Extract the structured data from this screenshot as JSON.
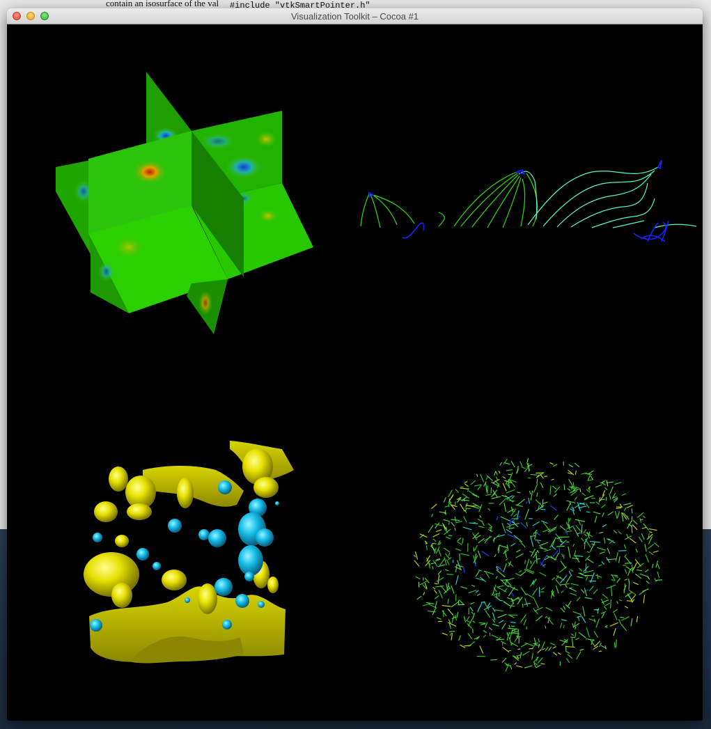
{
  "window": {
    "title": "Visualization Toolkit – Cocoa #1"
  },
  "background": {
    "doc_text": "contain an isosurface of the val",
    "code_text": "#include \"vtkSmartPointer.h\""
  },
  "render_panels": [
    {
      "name": "cut-planes",
      "colors": [
        "#22c000",
        "#1ea800",
        "#178a00",
        "#2fcf10"
      ]
    },
    {
      "name": "streamlines",
      "colors": [
        "#26e000",
        "#40ffd0",
        "#1010ff"
      ]
    },
    {
      "name": "isosurfaces",
      "colors": [
        "#e8e000",
        "#20c8f0"
      ]
    },
    {
      "name": "glyphs",
      "colors": [
        "#30d020",
        "#20e0e0",
        "#1050ff"
      ]
    }
  ]
}
